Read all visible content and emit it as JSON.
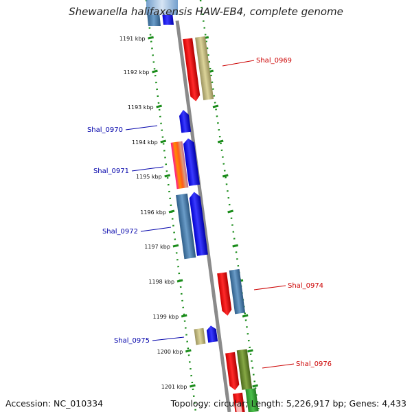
{
  "title": "Shewanella halifaxensis HAW-EB4, complete genome",
  "footer": {
    "accession": "Accession: NC_010334",
    "summary": "Topology: circular; Length: 5,226,917 bp; Genes: 4,433"
  },
  "colors": {
    "ruler_ticks": "#1a8c1a",
    "backbone": "#8a8a8a",
    "label_left": "#0000aa",
    "label_right": "#cc0000"
  },
  "kbp_ticks": [
    "1191 kbp",
    "1192 kbp",
    "1193 kbp",
    "1194 kbp",
    "1195 kbp",
    "1196 kbp",
    "1197 kbp",
    "1198 kbp",
    "1199 kbp",
    "1200 kbp",
    "1201 kbp"
  ],
  "gene_labels": [
    {
      "id": "Shal_0969",
      "side": "right"
    },
    {
      "id": "Shal_0970",
      "side": "left"
    },
    {
      "id": "Shal_0971",
      "side": "left"
    },
    {
      "id": "Shal_0972",
      "side": "left"
    },
    {
      "id": "Shal_0974",
      "side": "right"
    },
    {
      "id": "Shal_0975",
      "side": "left"
    },
    {
      "id": "Shal_0976",
      "side": "right"
    }
  ]
}
